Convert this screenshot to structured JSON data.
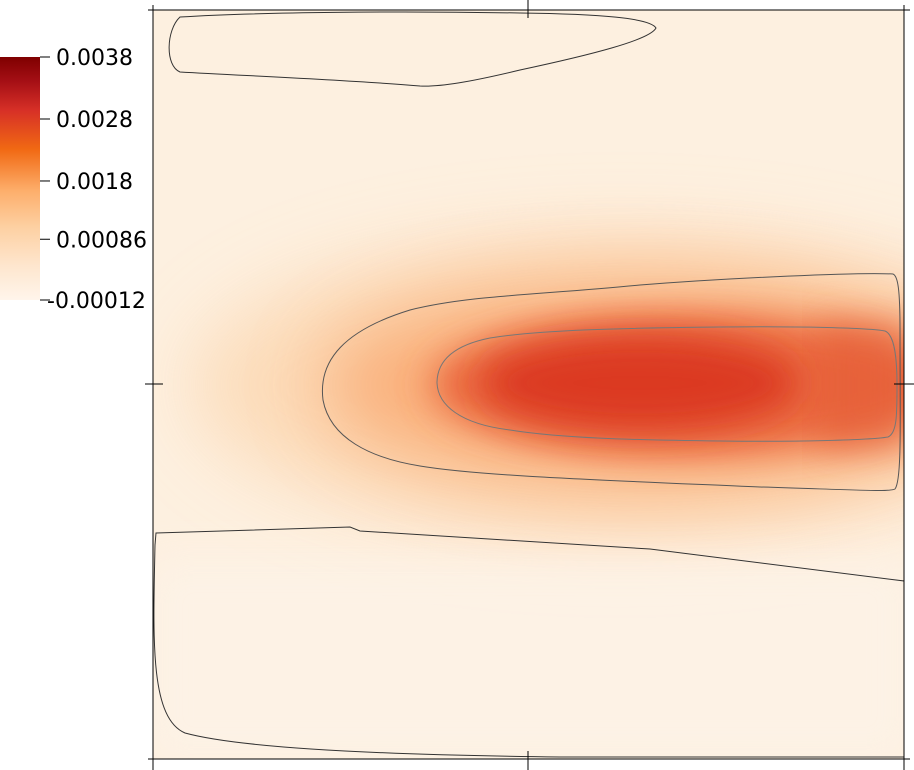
{
  "chart_data": {
    "type": "heatmap",
    "title": "",
    "xlabel": "",
    "ylabel": "",
    "colormap": {
      "name": "orange-red sequential",
      "stops": [
        "#fff5eb",
        "#fee6ce",
        "#fdd0a2",
        "#fdae6b",
        "#f16913",
        "#d73027",
        "#a50f15",
        "#7f0000"
      ]
    },
    "colorbar": {
      "min": -0.00012,
      "max": 0.0038,
      "ticks": [
        {
          "value": 0.0038,
          "label": "0.0038"
        },
        {
          "value": 0.0028,
          "label": "0.0028"
        },
        {
          "value": 0.0018,
          "label": "0.0018"
        },
        {
          "value": 0.00086,
          "label": "0.00086"
        },
        {
          "value": -0.00012,
          "label": "-0.00012"
        }
      ]
    },
    "field": {
      "background_value": 0.0,
      "peak_value": 0.0031,
      "description_values": {
        "upper_closed_contour_value": 0.0,
        "lower_closed_contour_value": 0.0,
        "outer_core_contour_value": 0.0014,
        "inner_core_contour_value": 0.0024
      }
    },
    "grid": false
  }
}
